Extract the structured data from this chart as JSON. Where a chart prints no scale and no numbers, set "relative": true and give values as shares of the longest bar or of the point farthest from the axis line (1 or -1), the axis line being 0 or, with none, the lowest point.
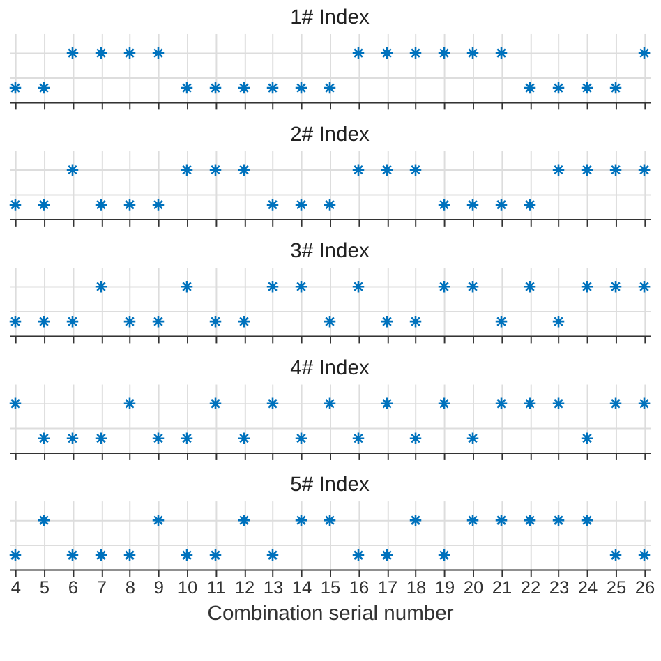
{
  "chart_data": [
    {
      "type": "scatter",
      "title": "1# Index",
      "relative": true,
      "marker": "cross",
      "grid": true,
      "tick_labels": false,
      "color": "#0072bd",
      "xlim": [
        3.8,
        26.2
      ],
      "xticks": [
        4,
        5,
        6,
        7,
        8,
        9,
        10,
        11,
        12,
        13,
        14,
        15,
        16,
        17,
        18,
        19,
        20,
        21,
        22,
        23,
        24,
        25,
        26
      ],
      "x": [
        4,
        5,
        6,
        7,
        8,
        9,
        10,
        11,
        12,
        13,
        14,
        15,
        16,
        17,
        18,
        19,
        20,
        21,
        22,
        23,
        24,
        25,
        26
      ],
      "values": [
        0.29,
        0.29,
        1,
        1,
        1,
        1,
        0.29,
        0.29,
        0.29,
        0.29,
        0.29,
        0.29,
        1,
        1,
        1,
        1,
        1,
        1,
        0.29,
        0.29,
        0.29,
        0.29,
        1
      ]
    },
    {
      "type": "scatter",
      "title": "2# Index",
      "relative": true,
      "marker": "cross",
      "grid": true,
      "tick_labels": false,
      "color": "#0072bd",
      "xlim": [
        3.8,
        26.2
      ],
      "xticks": [
        4,
        5,
        6,
        7,
        8,
        9,
        10,
        11,
        12,
        13,
        14,
        15,
        16,
        17,
        18,
        19,
        20,
        21,
        22,
        23,
        24,
        25,
        26
      ],
      "x": [
        4,
        5,
        6,
        7,
        8,
        9,
        10,
        11,
        12,
        13,
        14,
        15,
        16,
        17,
        18,
        19,
        20,
        21,
        22,
        23,
        24,
        25,
        26
      ],
      "values": [
        0.29,
        0.29,
        1,
        0.29,
        0.29,
        0.29,
        1,
        1,
        1,
        0.29,
        0.29,
        0.29,
        1,
        1,
        1,
        0.29,
        0.29,
        0.29,
        0.29,
        1,
        1,
        1,
        1
      ]
    },
    {
      "type": "scatter",
      "title": "3# Index",
      "relative": true,
      "marker": "cross",
      "grid": true,
      "tick_labels": false,
      "color": "#0072bd",
      "xlim": [
        3.8,
        26.2
      ],
      "xticks": [
        4,
        5,
        6,
        7,
        8,
        9,
        10,
        11,
        12,
        13,
        14,
        15,
        16,
        17,
        18,
        19,
        20,
        21,
        22,
        23,
        24,
        25,
        26
      ],
      "x": [
        4,
        5,
        6,
        7,
        8,
        9,
        10,
        11,
        12,
        13,
        14,
        15,
        16,
        17,
        18,
        19,
        20,
        21,
        22,
        23,
        24,
        25,
        26
      ],
      "values": [
        0.29,
        0.29,
        0.29,
        1,
        0.29,
        0.29,
        1,
        0.29,
        0.29,
        1,
        1,
        0.29,
        1,
        0.29,
        0.29,
        1,
        1,
        0.29,
        1,
        0.29,
        1,
        1,
        1
      ]
    },
    {
      "type": "scatter",
      "title": "4# Index",
      "relative": true,
      "marker": "cross",
      "grid": true,
      "tick_labels": false,
      "color": "#0072bd",
      "xlim": [
        3.8,
        26.2
      ],
      "xticks": [
        4,
        5,
        6,
        7,
        8,
        9,
        10,
        11,
        12,
        13,
        14,
        15,
        16,
        17,
        18,
        19,
        20,
        21,
        22,
        23,
        24,
        25,
        26
      ],
      "x": [
        4,
        5,
        6,
        7,
        8,
        9,
        10,
        11,
        12,
        13,
        14,
        15,
        16,
        17,
        18,
        19,
        20,
        21,
        22,
        23,
        24,
        25,
        26
      ],
      "values": [
        1,
        0.29,
        0.29,
        0.29,
        1,
        0.29,
        0.29,
        1,
        0.29,
        1,
        0.29,
        1,
        0.29,
        1,
        0.29,
        1,
        0.29,
        1,
        1,
        1,
        0.29,
        1,
        1
      ]
    },
    {
      "type": "scatter",
      "title": "5# Index",
      "xlabel": "Combination serial number",
      "relative": true,
      "marker": "cross",
      "grid": true,
      "tick_labels": "x",
      "color": "#0072bd",
      "xlim": [
        3.8,
        26.2
      ],
      "xticks": [
        4,
        5,
        6,
        7,
        8,
        9,
        10,
        11,
        12,
        13,
        14,
        15,
        16,
        17,
        18,
        19,
        20,
        21,
        22,
        23,
        24,
        25,
        26
      ],
      "x": [
        4,
        5,
        6,
        7,
        8,
        9,
        10,
        11,
        12,
        13,
        14,
        15,
        16,
        17,
        18,
        19,
        20,
        21,
        22,
        23,
        24,
        25,
        26
      ],
      "values": [
        0.29,
        1,
        0.29,
        0.29,
        0.29,
        1,
        0.29,
        0.29,
        1,
        0.29,
        1,
        1,
        0.29,
        0.29,
        1,
        0.29,
        1,
        1,
        1,
        1,
        1,
        0.29,
        0.29
      ]
    }
  ]
}
